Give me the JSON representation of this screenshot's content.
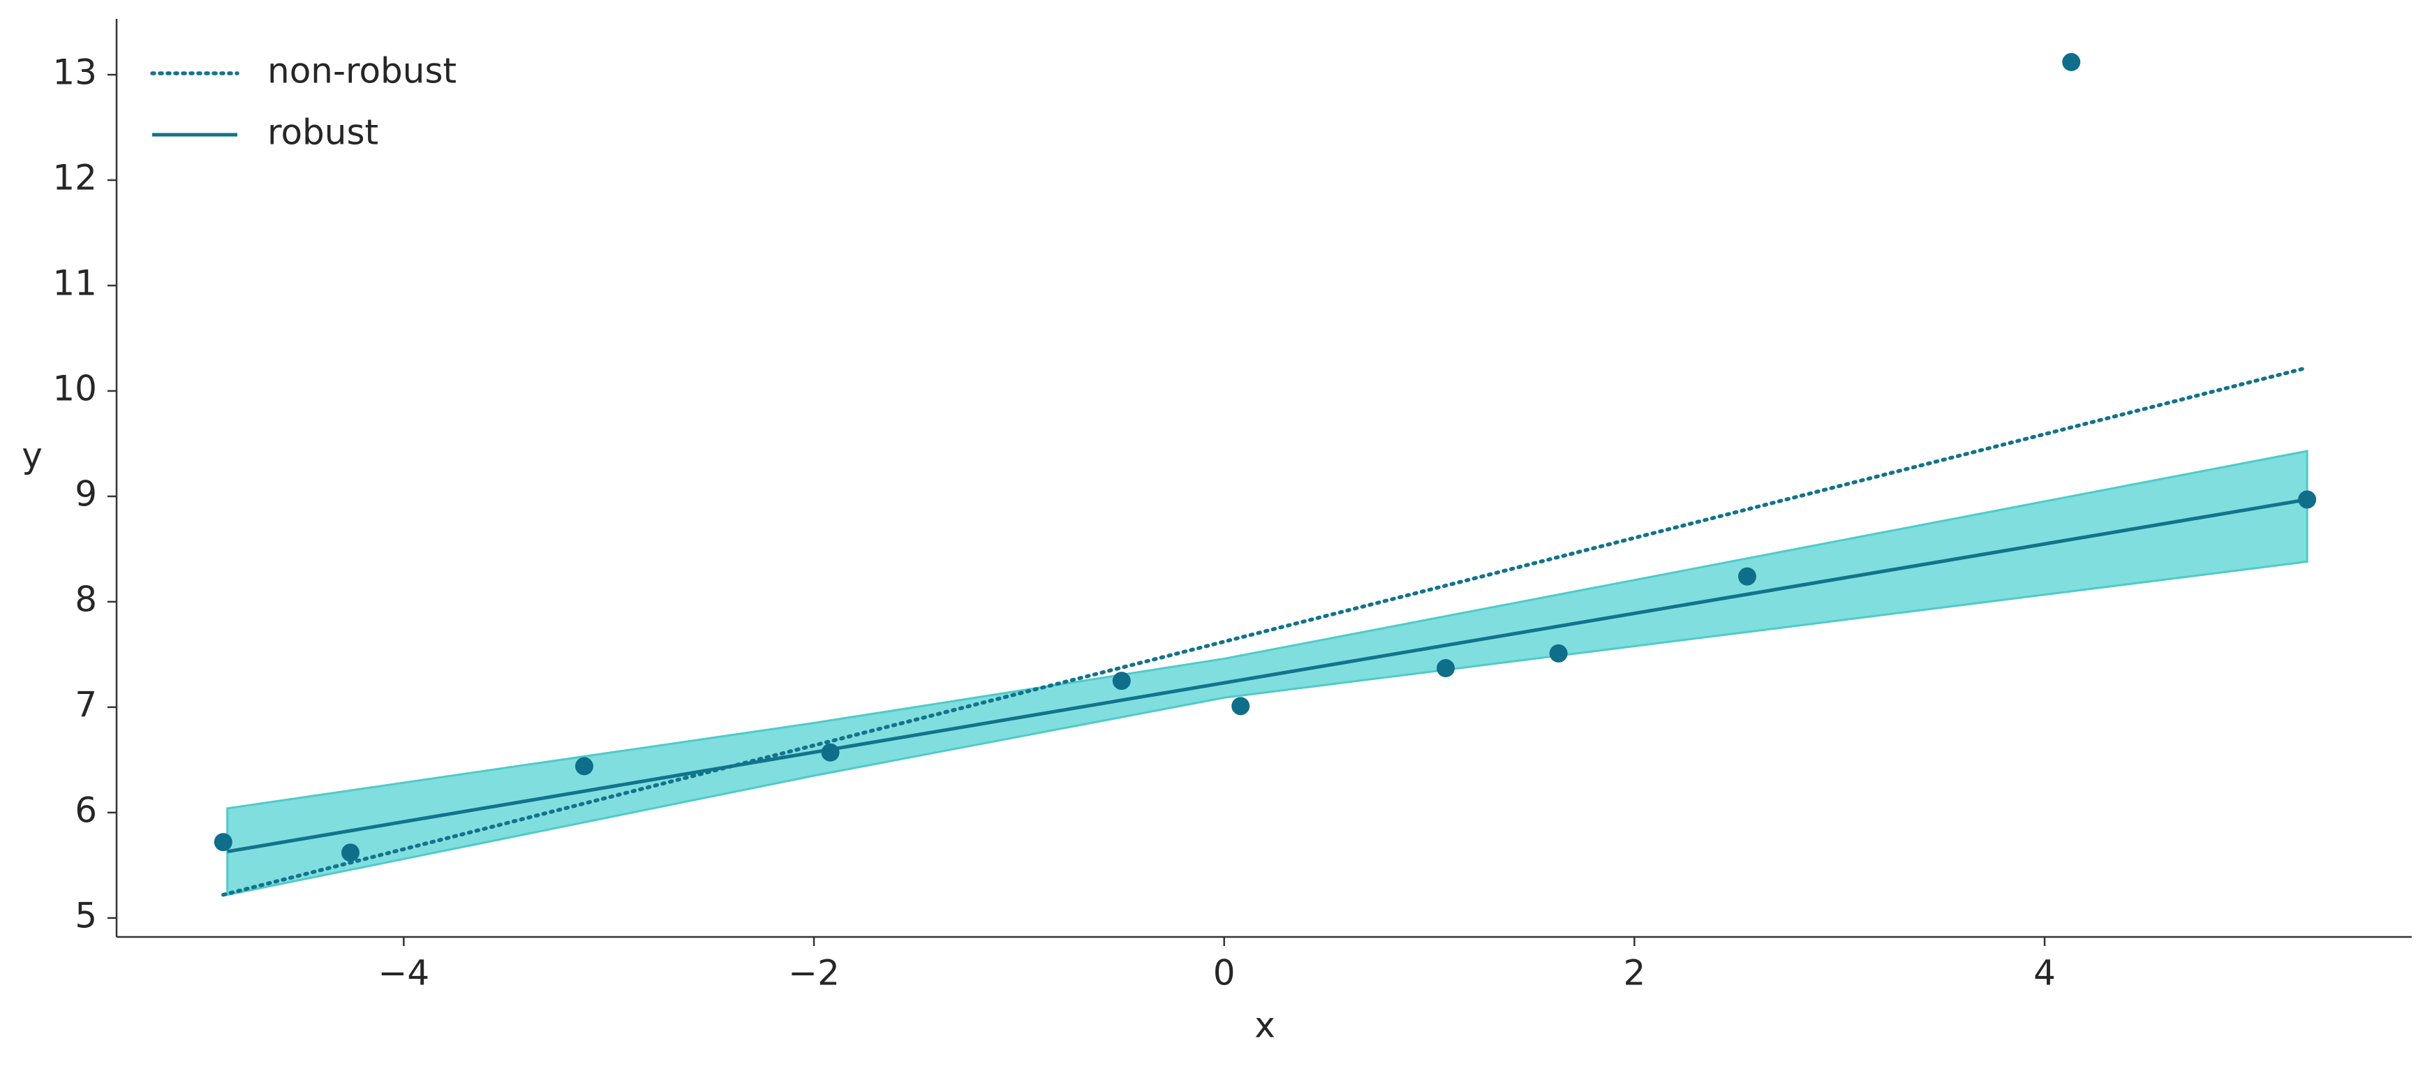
{
  "chart_data": {
    "type": "line",
    "x_label": "x",
    "y_label": "y",
    "xlim": [
      -5.4,
      5.79
    ],
    "ylim": [
      4.82,
      13.53
    ],
    "xticks": [
      {
        "value": -4,
        "label": "−4"
      },
      {
        "value": -2,
        "label": "−2"
      },
      0,
      2,
      4
    ],
    "yticks": [
      5,
      6,
      7,
      8,
      9,
      10,
      11,
      12,
      13
    ],
    "legend": "upper left",
    "series": [
      {
        "name": "non-robust",
        "color": "#12738c",
        "style": "dotted",
        "x": [
          -4.88,
          5.28
        ],
        "values": [
          5.22,
          10.22
        ]
      },
      {
        "name": "robust",
        "color": "#12738c",
        "style": "solid",
        "x": [
          -4.86,
          5.28
        ],
        "values": [
          5.63,
          8.97
        ]
      }
    ],
    "band": {
      "color": "#80dede",
      "edge_color": "#4fcaca",
      "x": [
        -4.86,
        -2,
        0,
        5.28
      ],
      "upper": [
        6.04,
        6.85,
        7.46,
        9.43
      ],
      "lower": [
        5.22,
        6.35,
        7.09,
        8.38
      ]
    },
    "points": {
      "color": "#0f6e8a",
      "x": [
        -4.88,
        -4.26,
        -3.12,
        -1.92,
        -0.5,
        0.08,
        1.08,
        1.63,
        2.55,
        4.13,
        5.28
      ],
      "values": [
        5.72,
        5.62,
        6.44,
        6.57,
        7.25,
        7.01,
        7.37,
        7.51,
        8.24,
        13.12,
        8.97
      ]
    }
  }
}
